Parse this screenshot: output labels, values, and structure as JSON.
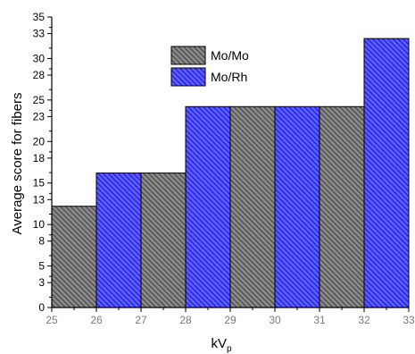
{
  "chart_data": {
    "type": "bar",
    "ylabel": "Average score for fibers",
    "xlabel": "kV",
    "xlabel_subscript": "p",
    "xlim": [
      25,
      33
    ],
    "ylim": [
      0,
      35
    ],
    "x_ticks": [
      "25",
      "26",
      "27",
      "28",
      "29",
      "30",
      "31",
      "32",
      "33"
    ],
    "y_ticks": [
      "0",
      "3",
      "5",
      "8",
      "10",
      "13",
      "15",
      "18",
      "20",
      "23",
      "25",
      "28",
      "30",
      "33",
      "35"
    ],
    "x": [
      26,
      28,
      30,
      32
    ],
    "series": [
      {
        "name": "Mo/Mo",
        "values": [
          12.2,
          16.2,
          24.2,
          24.2
        ],
        "color": "#6d6d6d",
        "pattern": "hatch-dark"
      },
      {
        "name": "Mo/Rh",
        "values": [
          16.2,
          24.2,
          24.2,
          32.4
        ],
        "color": "#1a1aff",
        "pattern": "hatch-blue"
      }
    ],
    "legend_position": "top-center",
    "grid": false
  }
}
